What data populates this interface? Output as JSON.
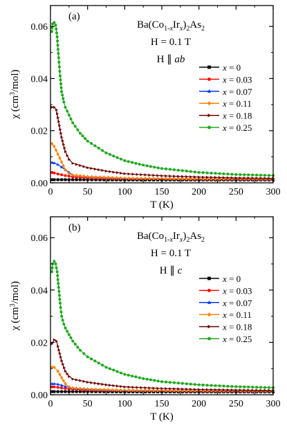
{
  "chart_data": [
    {
      "type": "scatter",
      "panel_label": "(a)",
      "annotation": {
        "formula": "Ba(Co1-xIrx)2As2",
        "field": "H = 0.1 T",
        "orientation": "H ∥ ab"
      },
      "xlabel": "T (K)",
      "ylabel": "χ (cm³/mol)",
      "xlim": [
        0,
        300
      ],
      "ylim": [
        0,
        0.068
      ],
      "xticks": [
        0,
        50,
        100,
        150,
        200,
        250,
        300
      ],
      "yticks": [
        0.0,
        0.02,
        0.04,
        0.06
      ],
      "ytick_labels": [
        "0.00",
        "0.02",
        "0.04",
        "0.06"
      ],
      "grid": false,
      "legend": "right",
      "series": [
        {
          "name": "x = 0",
          "color": "#000000",
          "marker": "square",
          "x": [
            2,
            5,
            10,
            20,
            30,
            50,
            100,
            150,
            200,
            250,
            300
          ],
          "y": [
            0.0012,
            0.0012,
            0.0012,
            0.0012,
            0.0012,
            0.0012,
            0.0011,
            0.0011,
            0.0011,
            0.0011,
            0.0011
          ]
        },
        {
          "name": "x = 0.03",
          "color": "#ff0000",
          "marker": "circle",
          "x": [
            2,
            5,
            10,
            20,
            30,
            50,
            100,
            150,
            200,
            250,
            300
          ],
          "y": [
            0.004,
            0.0038,
            0.0034,
            0.0028,
            0.0023,
            0.0019,
            0.0016,
            0.0015,
            0.0014,
            0.0014,
            0.0014
          ]
        },
        {
          "name": "x = 0.07",
          "color": "#0033ff",
          "marker": "triangle",
          "x": [
            2,
            5,
            10,
            20,
            30,
            50,
            100,
            150,
            200,
            250,
            300
          ],
          "y": [
            0.0078,
            0.0076,
            0.007,
            0.005,
            0.003,
            0.0024,
            0.0018,
            0.0016,
            0.0015,
            0.0015,
            0.0014
          ]
        },
        {
          "name": "x = 0.11",
          "color": "#ff8000",
          "marker": "diamond",
          "x": [
            2,
            5,
            10,
            15,
            20,
            25,
            30,
            50,
            100,
            150,
            200,
            250,
            300
          ],
          "y": [
            0.015,
            0.014,
            0.011,
            0.008,
            0.005,
            0.0035,
            0.003,
            0.0024,
            0.0018,
            0.0016,
            0.0015,
            0.0015,
            0.0014
          ]
        },
        {
          "name": "x = 0.18",
          "color": "#6b0000",
          "marker": "triangle-right",
          "x": [
            2,
            5,
            8,
            10,
            15,
            20,
            25,
            30,
            50,
            75,
            100,
            150,
            200,
            250,
            300
          ],
          "y": [
            0.029,
            0.029,
            0.028,
            0.025,
            0.0175,
            0.012,
            0.009,
            0.0075,
            0.0058,
            0.0045,
            0.0035,
            0.0027,
            0.0022,
            0.0019,
            0.0017
          ]
        },
        {
          "name": "x = 0.25",
          "color": "#1fa81f",
          "marker": "circle",
          "x": [
            1.8,
            3,
            5,
            7,
            9,
            11,
            13,
            15,
            18,
            20,
            25,
            30,
            40,
            50,
            75,
            100,
            125,
            150,
            200,
            250,
            300
          ],
          "y": [
            0.058,
            0.061,
            0.0615,
            0.0605,
            0.056,
            0.048,
            0.041,
            0.035,
            0.031,
            0.029,
            0.026,
            0.023,
            0.019,
            0.016,
            0.0115,
            0.0085,
            0.0068,
            0.0055,
            0.004,
            0.0032,
            0.0028
          ]
        }
      ]
    },
    {
      "type": "scatter",
      "panel_label": "(b)",
      "annotation": {
        "formula": "Ba(Co1-xIrx)2As2",
        "field": "H = 0.1 T",
        "orientation": "H ∥ c"
      },
      "xlabel": "T (K)",
      "ylabel": "χ (cm³/mol)",
      "xlim": [
        0,
        300
      ],
      "ylim": [
        0,
        0.068
      ],
      "xticks": [
        0,
        50,
        100,
        150,
        200,
        250,
        300
      ],
      "yticks": [
        0.0,
        0.02,
        0.04,
        0.06
      ],
      "ytick_labels": [
        "0.00",
        "0.02",
        "0.04",
        "0.06"
      ],
      "grid": false,
      "legend": "right",
      "series": [
        {
          "name": "x = 0",
          "color": "#000000",
          "marker": "square",
          "x": [
            2,
            5,
            10,
            20,
            30,
            50,
            100,
            150,
            200,
            250,
            300
          ],
          "y": [
            0.0012,
            0.0012,
            0.0012,
            0.0012,
            0.0012,
            0.0012,
            0.0011,
            0.0011,
            0.0011,
            0.0011,
            0.0011
          ]
        },
        {
          "name": "x = 0.03",
          "color": "#ff0000",
          "marker": "circle",
          "x": [
            2,
            5,
            10,
            20,
            30,
            50,
            100,
            150,
            200,
            250,
            300
          ],
          "y": [
            0.003,
            0.003,
            0.0028,
            0.0024,
            0.0021,
            0.0018,
            0.0016,
            0.0015,
            0.0014,
            0.0014,
            0.0014
          ]
        },
        {
          "name": "x = 0.07",
          "color": "#0033ff",
          "marker": "triangle",
          "x": [
            2,
            5,
            10,
            20,
            30,
            50,
            100,
            150,
            200,
            250,
            300
          ],
          "y": [
            0.0042,
            0.0042,
            0.004,
            0.0032,
            0.0025,
            0.0021,
            0.0017,
            0.0016,
            0.0015,
            0.0015,
            0.0014
          ]
        },
        {
          "name": "x = 0.11",
          "color": "#ff8000",
          "marker": "diamond",
          "x": [
            2,
            5,
            10,
            15,
            20,
            25,
            30,
            50,
            100,
            150,
            200,
            250,
            300
          ],
          "y": [
            0.0105,
            0.0105,
            0.009,
            0.0065,
            0.0042,
            0.003,
            0.0026,
            0.0022,
            0.0017,
            0.0016,
            0.0015,
            0.0015,
            0.0014
          ]
        },
        {
          "name": "x = 0.18",
          "color": "#6b0000",
          "marker": "triangle-right",
          "x": [
            2,
            5,
            8,
            10,
            15,
            20,
            25,
            30,
            50,
            75,
            100,
            150,
            200,
            250,
            300
          ],
          "y": [
            0.0195,
            0.021,
            0.0205,
            0.0185,
            0.013,
            0.009,
            0.007,
            0.006,
            0.0048,
            0.0038,
            0.003,
            0.0024,
            0.002,
            0.0018,
            0.0016
          ]
        },
        {
          "name": "x = 0.25",
          "color": "#1fa81f",
          "marker": "circle",
          "x": [
            1.8,
            3,
            5,
            7,
            9,
            11,
            13,
            15,
            18,
            20,
            25,
            30,
            40,
            50,
            75,
            100,
            125,
            150,
            200,
            250,
            300
          ],
          "y": [
            0.047,
            0.05,
            0.051,
            0.05,
            0.047,
            0.041,
            0.035,
            0.03,
            0.027,
            0.0255,
            0.023,
            0.0205,
            0.017,
            0.0145,
            0.0105,
            0.0078,
            0.0062,
            0.005,
            0.0038,
            0.0031,
            0.0027
          ]
        }
      ]
    }
  ]
}
